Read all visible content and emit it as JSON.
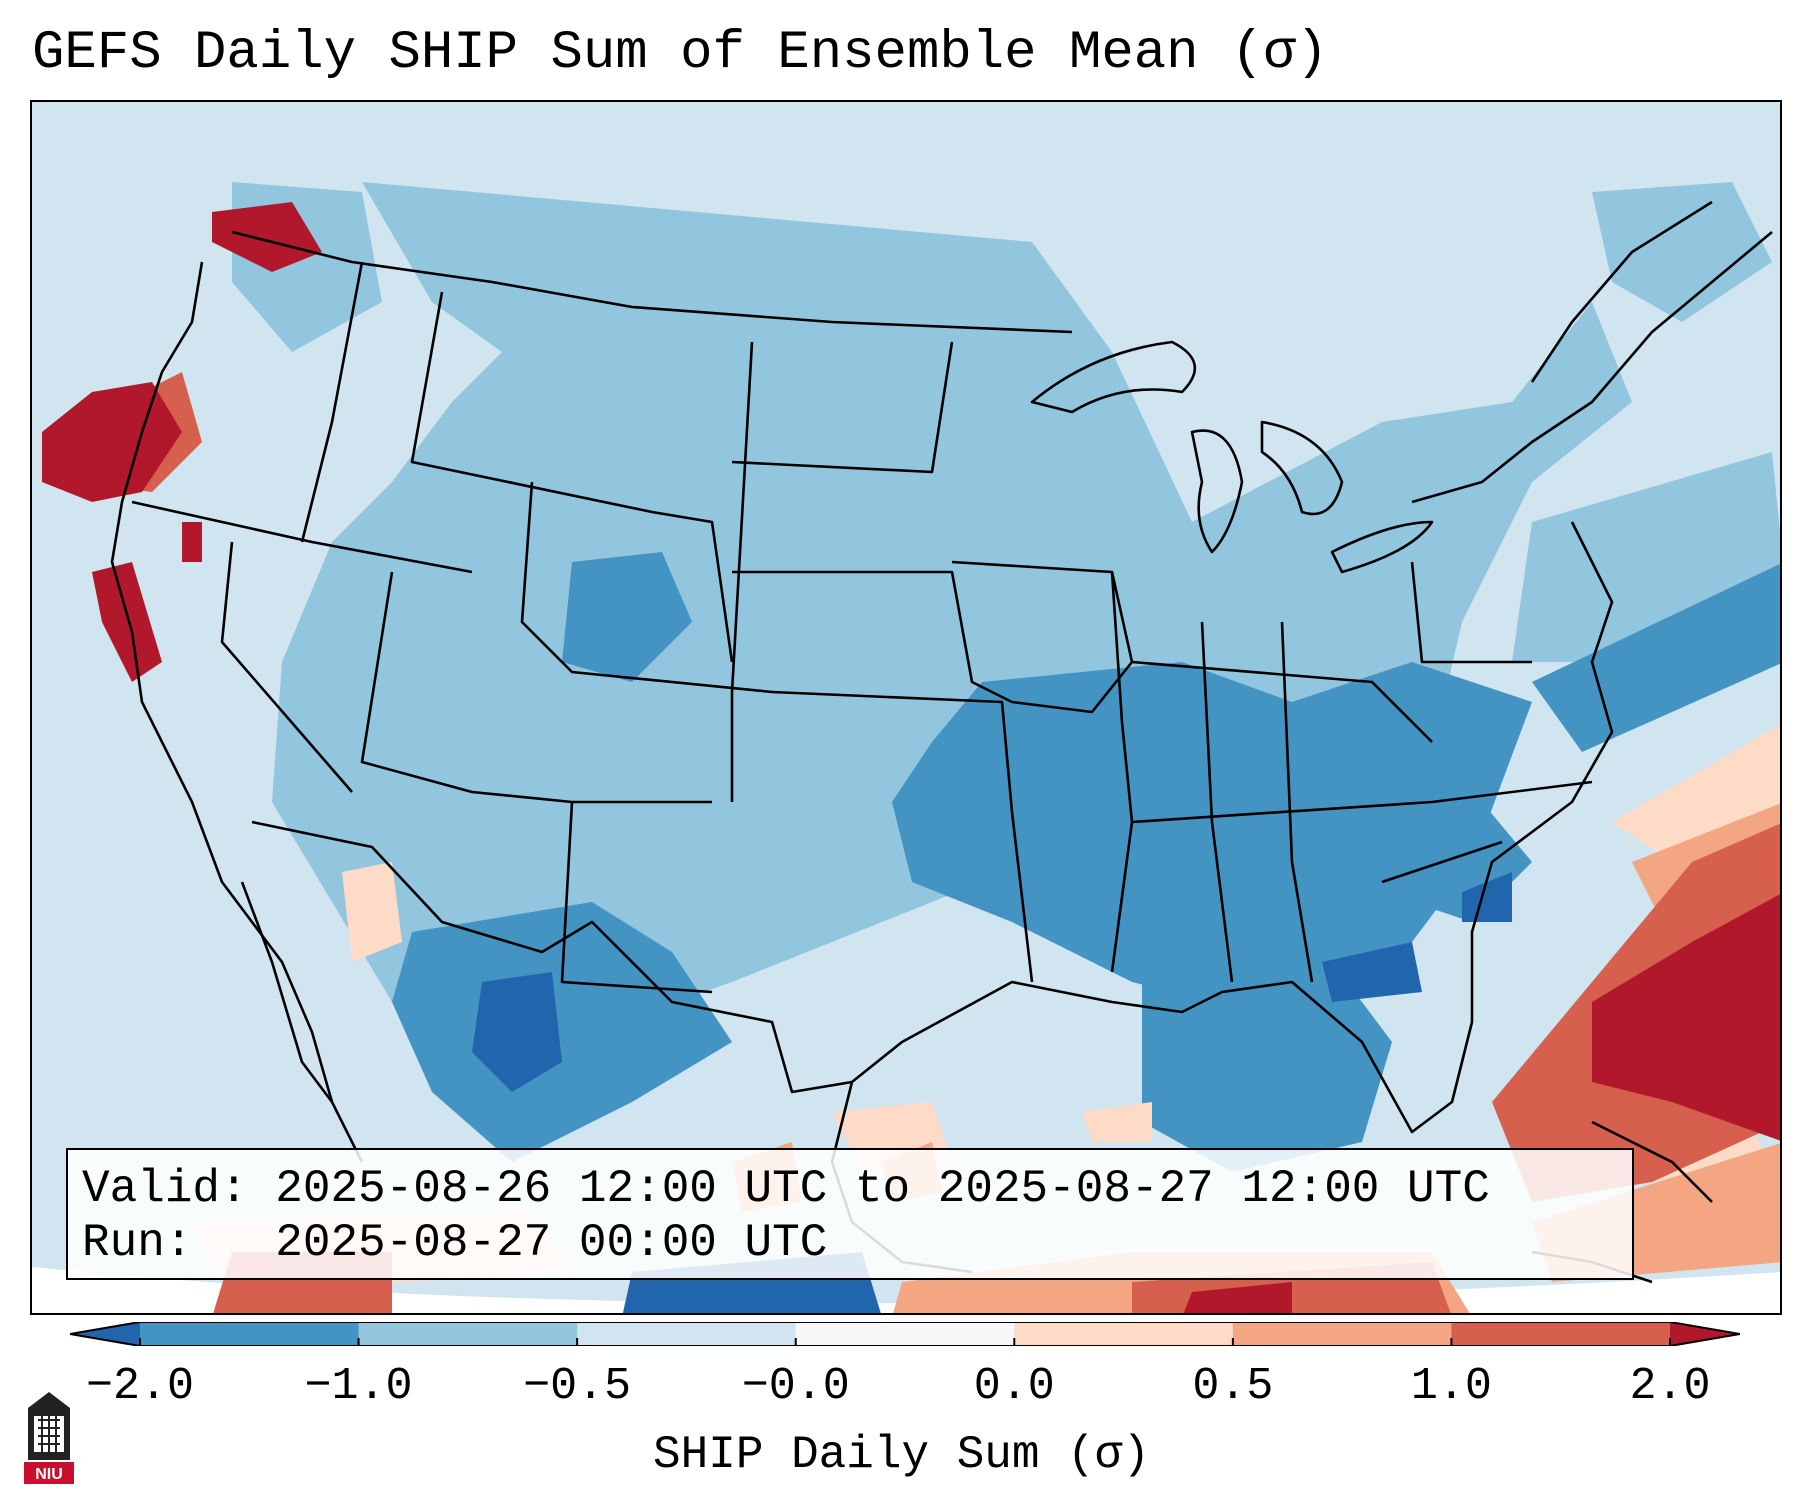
{
  "title": "GEFS Daily SHIP Sum of Ensemble Mean (σ)",
  "info_box": {
    "valid_line": "Valid: 2025-08-26 12:00 UTC to 2025-08-27 12:00 UTC",
    "run_line": "Run:   2025-08-27 00:00 UTC"
  },
  "colorbar": {
    "label": "SHIP Daily Sum (σ)",
    "ticks": [
      "−2.0",
      "−1.0",
      "−0.5",
      "−0.0",
      "0.0",
      "0.5",
      "1.0",
      "2.0"
    ],
    "bins": [
      {
        "from": "< -2.0",
        "color": "#2166ac"
      },
      {
        "from": "-2.0 to -1.0",
        "color": "#4393c3"
      },
      {
        "from": "-1.0 to -0.5",
        "color": "#92c5de"
      },
      {
        "from": "-0.5 to 0.0",
        "color": "#d1e5f0"
      },
      {
        "from": "0.0",
        "color": "#f7f7f7"
      },
      {
        "from": "0.0 to 0.5",
        "color": "#fddbc7"
      },
      {
        "from": "0.5 to 1.0",
        "color": "#f4a582"
      },
      {
        "from": "1.0 to 2.0",
        "color": "#d6604d"
      },
      {
        "from": "> 2.0",
        "color": "#b2182b"
      }
    ]
  },
  "logo": {
    "text": "NIU",
    "color": "#c8102e"
  }
}
